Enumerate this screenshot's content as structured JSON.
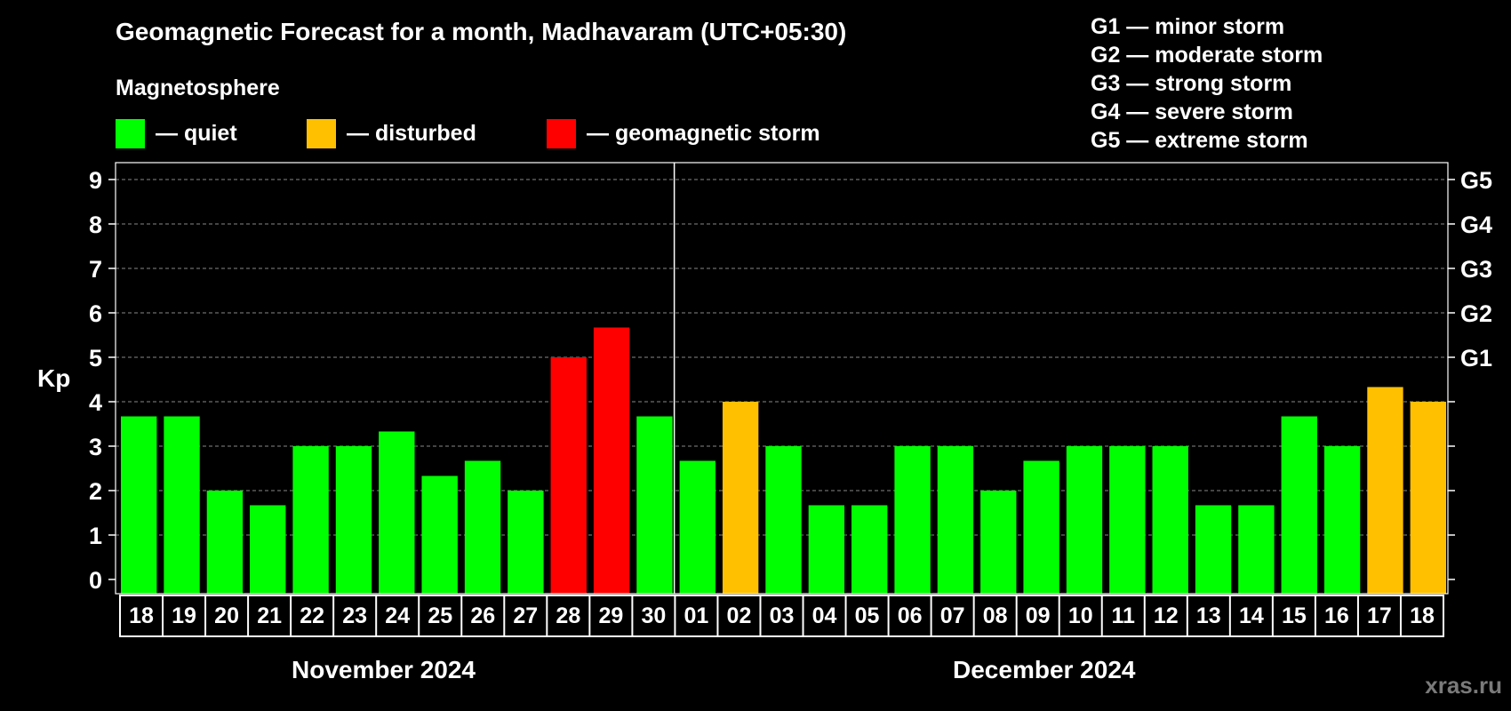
{
  "title": "Geomagnetic Forecast for a month, Madhavaram (UTC+05:30)",
  "legend": {
    "title": "Magnetosphere",
    "items": [
      {
        "label": "— quiet",
        "color": "#00ff00"
      },
      {
        "label": "— disturbed",
        "color": "#ffc000"
      },
      {
        "label": "— geomagnetic storm",
        "color": "#ff0000"
      }
    ]
  },
  "storm_levels": [
    "G1 — minor storm",
    "G2 — moderate storm",
    "G3 — strong storm",
    "G4 — severe storm",
    "G5 — extreme storm"
  ],
  "months": {
    "first": "November 2024",
    "second": "December 2024"
  },
  "watermark": "xras.ru",
  "colors": {
    "quiet": "#00ff00",
    "disturbed": "#ffc000",
    "storm": "#ff0000",
    "background": "#000000",
    "grid": "#888888"
  },
  "chart_data": {
    "type": "bar",
    "title": "Geomagnetic Forecast for a month, Madhavaram (UTC+05:30)",
    "ylabel": "Kp",
    "ylim": [
      0,
      9
    ],
    "yticks": [
      0,
      1,
      2,
      3,
      4,
      5,
      6,
      7,
      8,
      9
    ],
    "right_axis_labels": [
      {
        "kp": 5,
        "label": "G1"
      },
      {
        "kp": 6,
        "label": "G2"
      },
      {
        "kp": 7,
        "label": "G3"
      },
      {
        "kp": 8,
        "label": "G4"
      },
      {
        "kp": 9,
        "label": "G5"
      }
    ],
    "categories": [
      "18",
      "19",
      "20",
      "21",
      "22",
      "23",
      "24",
      "25",
      "26",
      "27",
      "28",
      "29",
      "30",
      "01",
      "02",
      "03",
      "04",
      "05",
      "06",
      "07",
      "08",
      "09",
      "10",
      "11",
      "12",
      "13",
      "14",
      "15",
      "16",
      "17",
      "18"
    ],
    "values": [
      3.67,
      3.67,
      2.0,
      1.67,
      3.0,
      3.0,
      3.33,
      2.33,
      2.67,
      2.0,
      5.0,
      5.67,
      3.67,
      2.67,
      4.0,
      3.0,
      1.67,
      1.67,
      3.0,
      3.0,
      2.0,
      2.67,
      3.0,
      3.0,
      3.0,
      1.67,
      1.67,
      3.67,
      3.0,
      4.33,
      4.0
    ],
    "status": [
      "quiet",
      "quiet",
      "quiet",
      "quiet",
      "quiet",
      "quiet",
      "quiet",
      "quiet",
      "quiet",
      "quiet",
      "storm",
      "storm",
      "quiet",
      "quiet",
      "disturbed",
      "quiet",
      "quiet",
      "quiet",
      "quiet",
      "quiet",
      "quiet",
      "quiet",
      "quiet",
      "quiet",
      "quiet",
      "quiet",
      "quiet",
      "quiet",
      "quiet",
      "disturbed",
      "disturbed"
    ],
    "month_split_index": 13
  }
}
